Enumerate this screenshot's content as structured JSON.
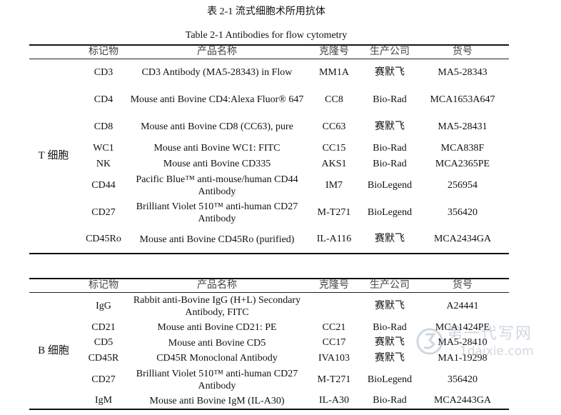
{
  "caption": {
    "cn": "表 2-1 流式细胞术所用抗体",
    "en": "Table 2-1 Antibodies for flow cytometry"
  },
  "headers": [
    "标记物",
    "产品名称",
    "克隆号",
    "生产公司",
    "货号"
  ],
  "table_t": {
    "group": "T 细胞",
    "rows": [
      {
        "marker": "CD3",
        "product": "CD3 Antibody (MA5-28343) in Flow",
        "clone": "MM1A",
        "company": "赛默飞",
        "catalog": "MA5-28343"
      },
      {
        "marker": "CD4",
        "product": "Mouse anti Bovine CD4:Alexa Fluor® 647",
        "clone": "CC8",
        "company": "Bio-Rad",
        "catalog": "MCA1653A647"
      },
      {
        "marker": "CD8",
        "product": "Mouse anti Bovine CD8 (CC63), pure",
        "clone": "CC63",
        "company": "赛默飞",
        "catalog": "MA5-28431"
      },
      {
        "marker": "WC1",
        "product": "Mouse anti Bovine WC1: FITC",
        "clone": "CC15",
        "company": "Bio-Rad",
        "catalog": "MCA838F"
      },
      {
        "marker": "NK",
        "product": "Mouse anti Bovine CD335",
        "clone": "AKS1",
        "company": "Bio-Rad",
        "catalog": "MCA2365PE"
      },
      {
        "marker": "CD44",
        "product": "Pacific Blue™ anti-mouse/human CD44 Antibody",
        "clone": "IM7",
        "company": "BioLegend",
        "catalog": "256954"
      },
      {
        "marker": "CD27",
        "product": "Brilliant Violet 510™ anti-human CD27 Antibody",
        "clone": "M-T271",
        "company": "BioLegend",
        "catalog": "356420"
      },
      {
        "marker": "CD45Ro",
        "product": "Mouse anti Bovine CD45Ro (purified)",
        "clone": "IL-A116",
        "company": "赛默飞",
        "catalog": "MCA2434GA"
      }
    ]
  },
  "table_b": {
    "group": "B 细胞",
    "rows": [
      {
        "marker": "IgG",
        "product": "Rabbit anti-Bovine IgG (H+L) Secondary Antibody, FITC",
        "clone": "",
        "company": "赛默飞",
        "catalog": "A24441"
      },
      {
        "marker": "CD21",
        "product": "Mouse anti Bovine CD21: PE",
        "clone": "CC21",
        "company": "Bio-Rad",
        "catalog": "MCA1424PE"
      },
      {
        "marker": "CD5",
        "product": "Mouse anti Bovine CD5",
        "clone": "CC17",
        "company": "赛默飞",
        "catalog": "MA5-28410"
      },
      {
        "marker": "CD45R",
        "product": "CD45R Monoclonal Antibody",
        "clone": "IVA103",
        "company": "赛默飞",
        "catalog": "MA1-19298"
      },
      {
        "marker": "CD27",
        "product": "Brilliant Violet 510™ anti-human CD27 Antibody",
        "clone": "M-T271",
        "company": "BioLegend",
        "catalog": "356420"
      },
      {
        "marker": "IgM",
        "product": "Mouse anti Bovine IgM (IL-A30)",
        "clone": "IL-A30",
        "company": "Bio-Rad",
        "catalog": "MCA2443GA"
      }
    ]
  },
  "watermark": {
    "text": "第一代写网",
    "url": "1daixie.com"
  }
}
